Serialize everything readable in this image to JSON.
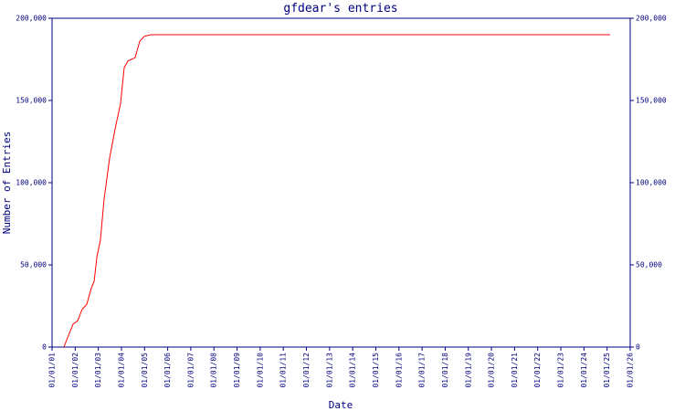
{
  "chart_data": {
    "type": "line",
    "title": "gfdear's entries",
    "x_label": "Date",
    "y_label": "Number of Entries",
    "x": [
      0.51,
      0.91,
      1.11,
      1.3,
      1.5,
      1.7,
      1.82,
      1.94,
      2.09,
      2.25,
      2.49,
      2.73,
      2.96,
      3.12,
      3.28,
      3.59,
      3.79,
      3.99,
      4.27,
      24.13
    ],
    "series": [
      {
        "name": "entries",
        "color": "#ff0000",
        "values": [
          0,
          14000,
          16000,
          23000,
          26000,
          36000,
          40000,
          55000,
          65000,
          90000,
          115000,
          133000,
          148000,
          170000,
          174000,
          176000,
          186000,
          189000,
          190000,
          190000
        ]
      }
    ],
    "xlim": [
      0,
      25
    ],
    "xticks": [
      {
        "value": 0,
        "label": "01/01/01"
      },
      {
        "value": 1,
        "label": "01/01/02"
      },
      {
        "value": 2,
        "label": "01/01/03"
      },
      {
        "value": 3,
        "label": "01/01/04"
      },
      {
        "value": 4,
        "label": "01/01/05"
      },
      {
        "value": 5,
        "label": "01/01/06"
      },
      {
        "value": 6,
        "label": "01/01/07"
      },
      {
        "value": 7,
        "label": "01/01/08"
      },
      {
        "value": 8,
        "label": "01/01/09"
      },
      {
        "value": 9,
        "label": "01/01/10"
      },
      {
        "value": 10,
        "label": "01/01/11"
      },
      {
        "value": 11,
        "label": "01/01/12"
      },
      {
        "value": 12,
        "label": "01/01/13"
      },
      {
        "value": 13,
        "label": "01/01/14"
      },
      {
        "value": 14,
        "label": "01/01/15"
      },
      {
        "value": 15,
        "label": "01/01/16"
      },
      {
        "value": 16,
        "label": "01/01/17"
      },
      {
        "value": 17,
        "label": "01/01/18"
      },
      {
        "value": 18,
        "label": "01/01/19"
      },
      {
        "value": 19,
        "label": "01/01/20"
      },
      {
        "value": 20,
        "label": "01/01/21"
      },
      {
        "value": 21,
        "label": "01/01/22"
      },
      {
        "value": 22,
        "label": "01/01/23"
      },
      {
        "value": 23,
        "label": "01/01/24"
      },
      {
        "value": 24,
        "label": "01/01/25"
      },
      {
        "value": 25,
        "label": "01/01/26"
      }
    ],
    "ylim": [
      0,
      200000
    ],
    "yticks": [
      0,
      {
        "value": 50000,
        "label": "50,000"
      },
      {
        "value": 100000,
        "label": "100,000"
      },
      {
        "value": 150000,
        "label": "150,000"
      },
      {
        "value": 200000,
        "label": "200,000"
      }
    ],
    "y2lim": [
      0,
      200000
    ],
    "y2ticks": [
      0,
      {
        "value": 50000,
        "label": "50,000"
      },
      {
        "value": 100000,
        "label": "100,000"
      },
      {
        "value": 150000,
        "label": "150,000"
      },
      {
        "value": 200000,
        "label": "200,000"
      }
    ],
    "grid": false
  }
}
